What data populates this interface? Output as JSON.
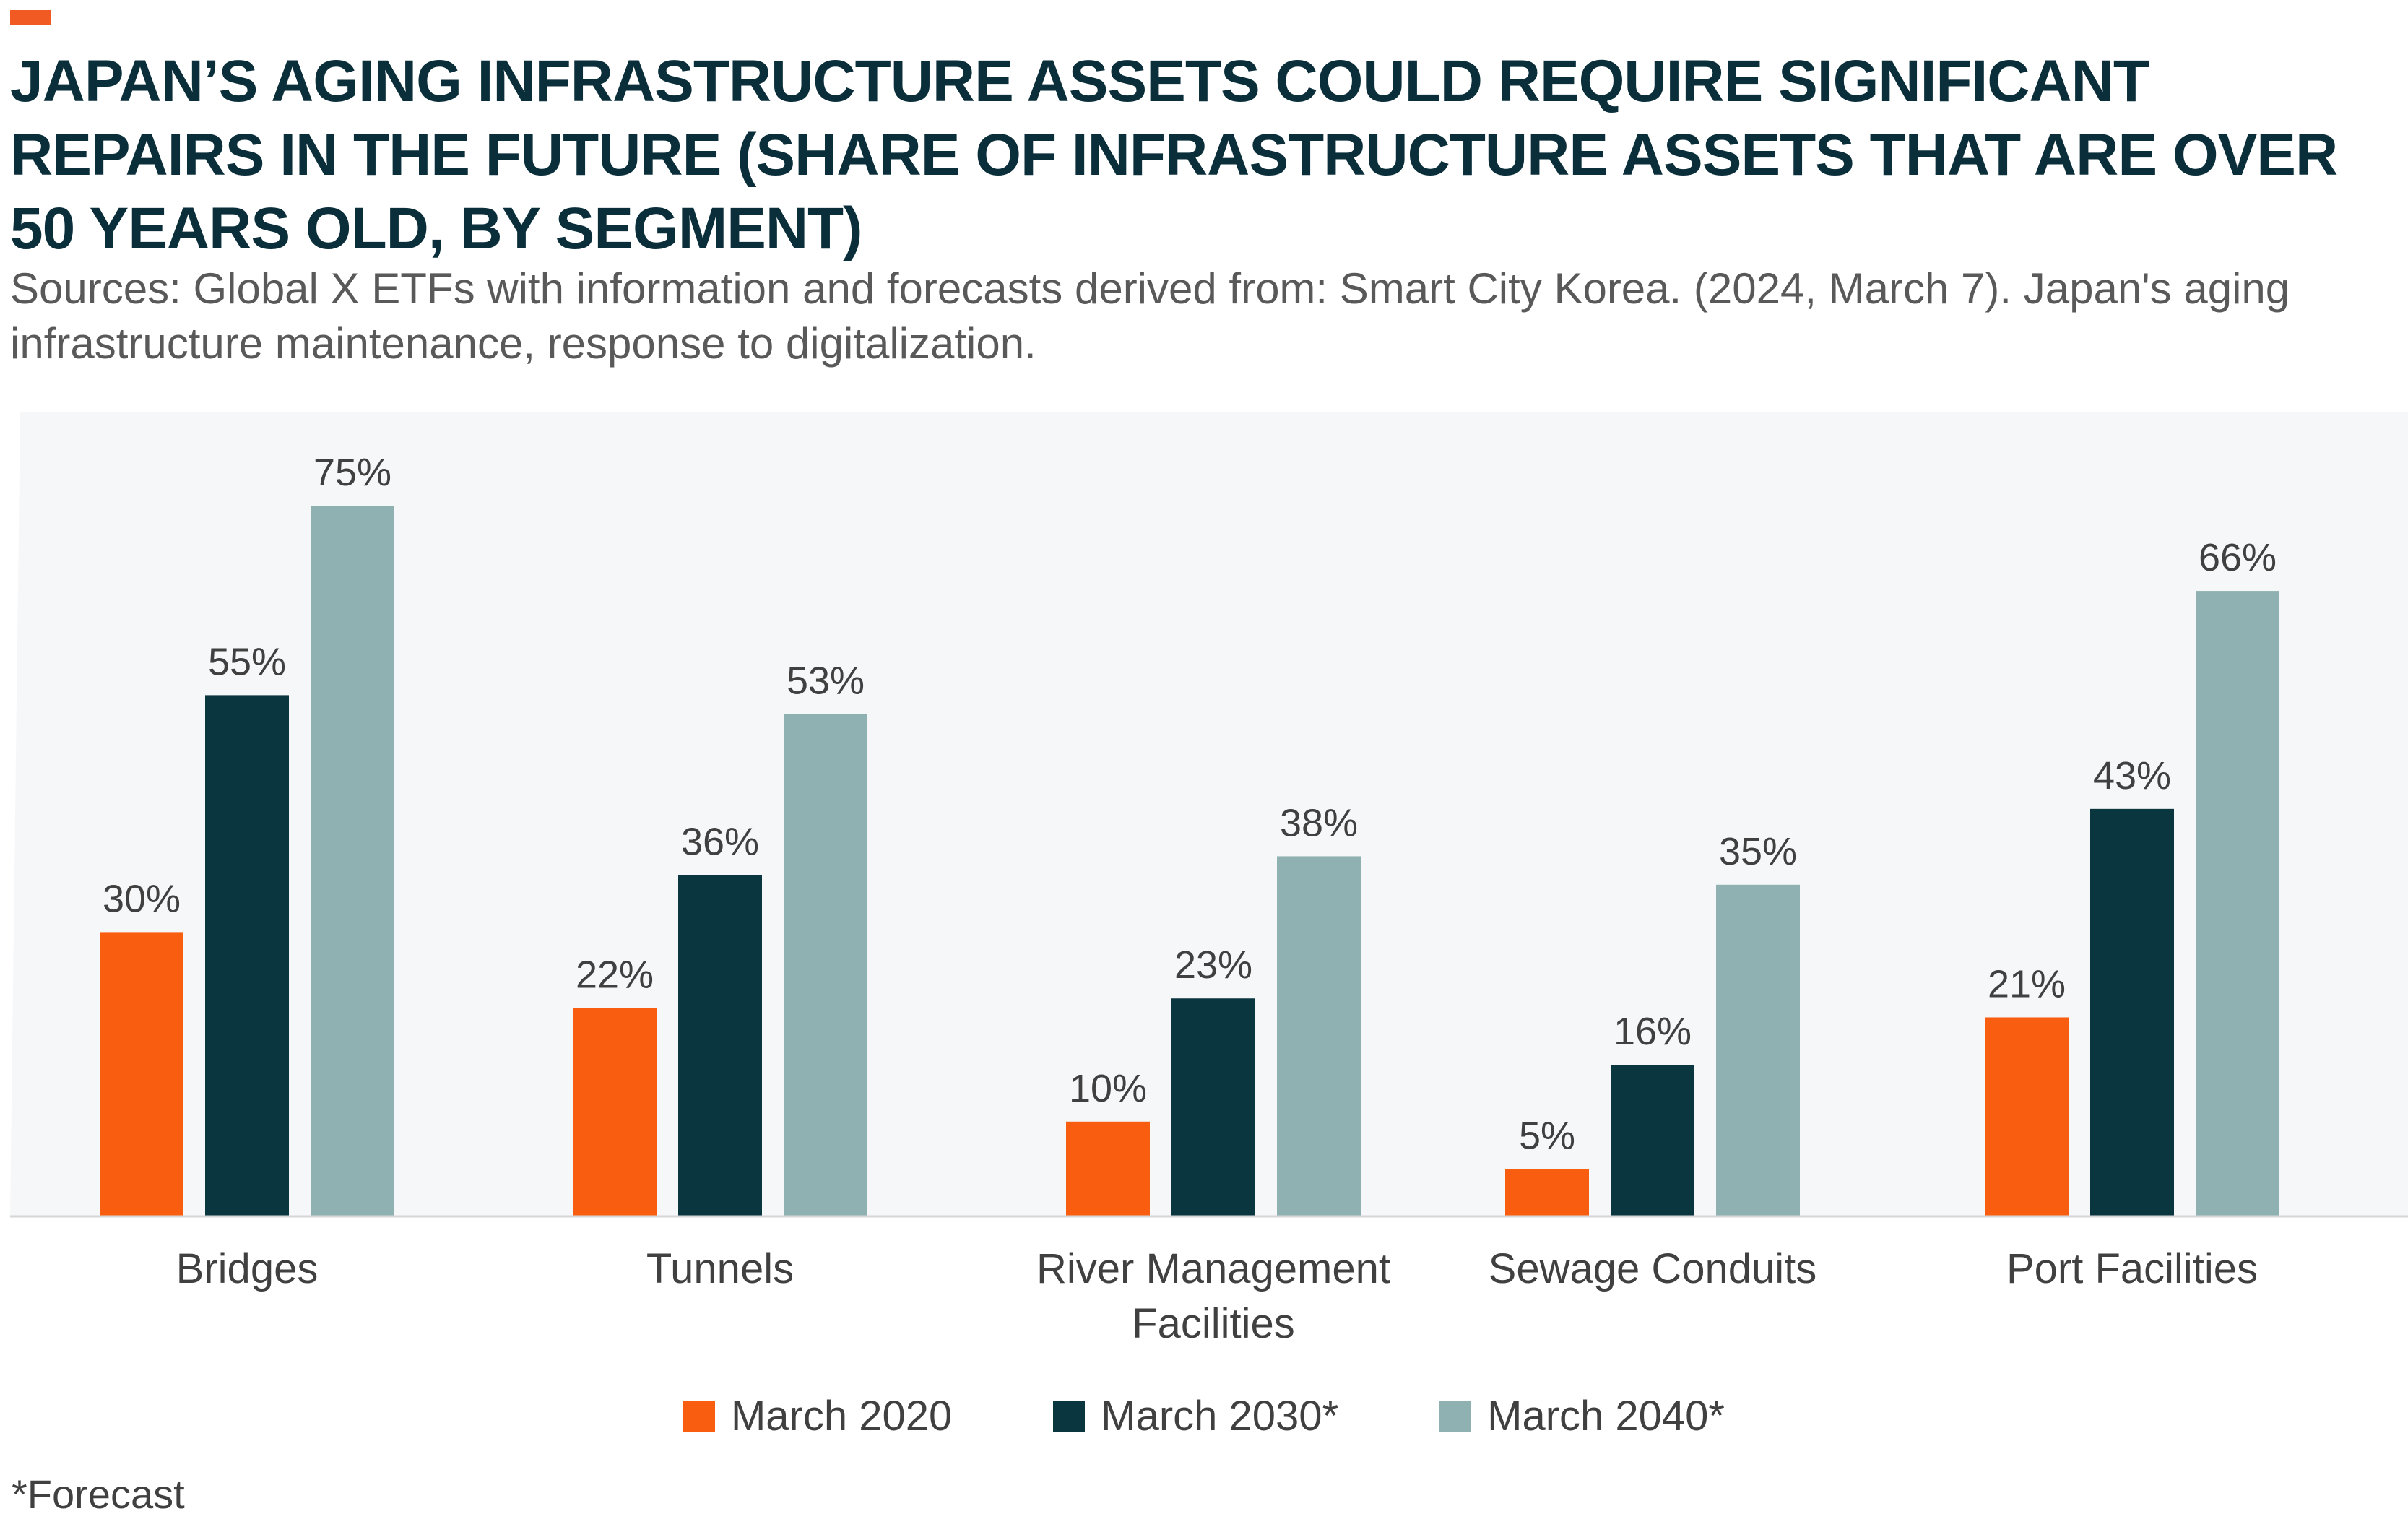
{
  "header": {
    "title": "JAPAN’S AGING INFRASTRUCTURE ASSETS COULD REQUIRE SIGNIFICANT REPAIRS IN THE FUTURE (SHARE OF INFRASTRUCTURE ASSETS THAT ARE OVER 50 YEARS OLD, BY SEGMENT)",
    "subtitle": "Sources: Global X ETFs with information and forecasts derived from: Smart City Korea. (2024, March 7). Japan's aging infrastructure maintenance, response to digitalization."
  },
  "footnote": "*Forecast",
  "colors": {
    "accent": "#f15a22",
    "plot_background": "#f6f7f9",
    "baseline": "#d6d6d6",
    "title": "#0b2f3a"
  },
  "chart_data": {
    "type": "bar",
    "categories": [
      "Bridges",
      "Tunnels",
      "River Management Facilities",
      "Sewage Conduits",
      "Port Facilities"
    ],
    "category_lines": [
      [
        "Bridges"
      ],
      [
        "Tunnels"
      ],
      [
        "River Management",
        "Facilities"
      ],
      [
        "Sewage Conduits"
      ],
      [
        "Port Facilities"
      ]
    ],
    "series": [
      {
        "name": "March 2020",
        "color": "#f95d0f",
        "values": [
          30,
          22,
          10,
          5,
          21
        ]
      },
      {
        "name": "March 2030*",
        "color": "#0a3640",
        "values": [
          55,
          36,
          23,
          16,
          43
        ]
      },
      {
        "name": "March 2040*",
        "color": "#8fb1b1",
        "values": [
          75,
          53,
          38,
          35,
          66
        ]
      }
    ],
    "value_suffix": "%",
    "ylim": [
      0,
      80
    ],
    "grid": false,
    "legend_position": "bottom"
  }
}
